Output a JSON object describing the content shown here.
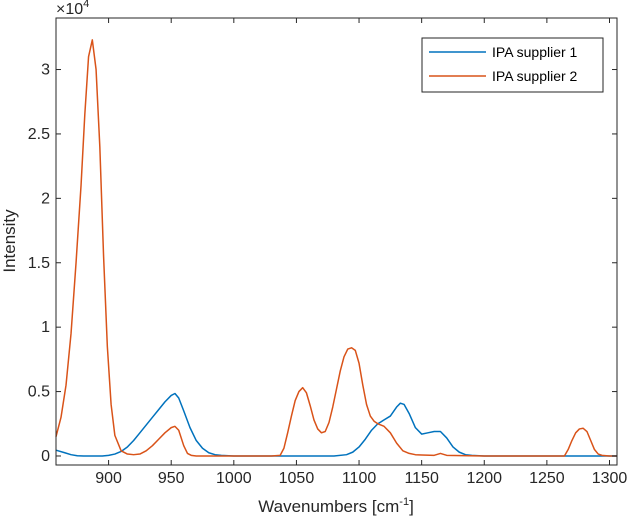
{
  "chart_data": {
    "type": "line",
    "xlabel": "Wavenumbers [cm",
    "xlabel_sup": "-1",
    "xlabel_end": "]",
    "ylabel": "Intensity",
    "exponent_base": "×10",
    "exponent_power": "4",
    "xlim": [
      858,
      1306
    ],
    "ylim": [
      -700,
      34000
    ],
    "x_ticks": [
      900,
      950,
      1000,
      1050,
      1100,
      1150,
      1200,
      1250,
      1300
    ],
    "x_tick_labels": [
      "900",
      "950",
      "1000",
      "1050",
      "1100",
      "1150",
      "1200",
      "1250",
      "1300"
    ],
    "y_ticks": [
      0,
      5000,
      10000,
      15000,
      20000,
      25000,
      30000
    ],
    "y_tick_labels": [
      "0",
      "0.5",
      "1",
      "1.5",
      "2",
      "2.5",
      "3"
    ],
    "grid": false,
    "legend_position": "top-right",
    "series": [
      {
        "name": "IPA supplier 1",
        "color": "#0072BD",
        "x": [
          858,
          865,
          870,
          875,
          880,
          885,
          890,
          895,
          900,
          905,
          910,
          915,
          920,
          925,
          930,
          935,
          940,
          945,
          950,
          953,
          956,
          960,
          965,
          970,
          975,
          980,
          985,
          990,
          1000,
          1020,
          1040,
          1060,
          1080,
          1090,
          1095,
          1100,
          1105,
          1110,
          1115,
          1120,
          1125,
          1130,
          1133,
          1136,
          1140,
          1145,
          1150,
          1155,
          1160,
          1165,
          1170,
          1175,
          1180,
          1185,
          1190,
          1200,
          1220,
          1240,
          1260,
          1280,
          1290,
          1300,
          1306
        ],
        "y": [
          450,
          250,
          100,
          20,
          0,
          0,
          0,
          0,
          50,
          150,
          350,
          700,
          1200,
          1800,
          2400,
          3000,
          3600,
          4200,
          4700,
          4850,
          4500,
          3500,
          2200,
          1200,
          600,
          250,
          100,
          50,
          0,
          0,
          0,
          0,
          0,
          100,
          300,
          700,
          1300,
          2000,
          2500,
          2800,
          3100,
          3800,
          4100,
          4000,
          3300,
          2200,
          1700,
          1800,
          1900,
          1900,
          1400,
          700,
          300,
          100,
          50,
          0,
          0,
          0,
          0,
          0,
          0,
          0,
          0
        ]
      },
      {
        "name": "IPA supplier 2",
        "color": "#D95319",
        "x": [
          858,
          862,
          866,
          870,
          874,
          878,
          881,
          884,
          887,
          890,
          893,
          896,
          899,
          902,
          905,
          910,
          915,
          920,
          925,
          930,
          935,
          940,
          945,
          950,
          953,
          956,
          960,
          963,
          966,
          970,
          1000,
          1030,
          1037,
          1040,
          1043,
          1046,
          1049,
          1052,
          1055,
          1058,
          1061,
          1064,
          1067,
          1070,
          1073,
          1076,
          1079,
          1082,
          1085,
          1088,
          1091,
          1094,
          1097,
          1100,
          1103,
          1106,
          1109,
          1112,
          1115,
          1120,
          1125,
          1130,
          1135,
          1140,
          1145,
          1150,
          1160,
          1165,
          1170,
          1200,
          1250,
          1264,
          1267,
          1270,
          1273,
          1276,
          1279,
          1282,
          1285,
          1288,
          1291,
          1294,
          1300,
          1306
        ],
        "y": [
          1500,
          3000,
          5500,
          9500,
          15000,
          21000,
          26500,
          31000,
          32300,
          30000,
          24000,
          15500,
          8500,
          4000,
          1600,
          400,
          150,
          100,
          150,
          400,
          800,
          1300,
          1800,
          2200,
          2300,
          2000,
          800,
          200,
          50,
          0,
          0,
          0,
          50,
          600,
          1800,
          3100,
          4300,
          5000,
          5300,
          4900,
          3900,
          2800,
          2100,
          1800,
          1900,
          2600,
          3800,
          5200,
          6600,
          7700,
          8300,
          8400,
          8200,
          7200,
          5500,
          4000,
          3100,
          2700,
          2500,
          2300,
          1800,
          1000,
          400,
          200,
          100,
          80,
          50,
          200,
          50,
          0,
          0,
          0,
          500,
          1200,
          1800,
          2100,
          2150,
          1900,
          1200,
          500,
          150,
          50,
          0,
          0
        ]
      }
    ]
  }
}
